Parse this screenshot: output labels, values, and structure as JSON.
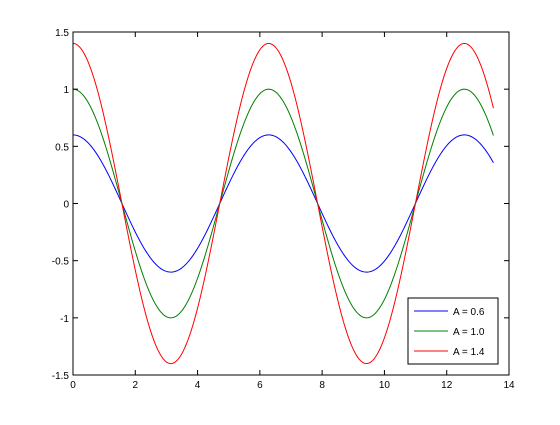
{
  "chart_data": {
    "type": "line",
    "title": "",
    "xlabel": "",
    "ylabel": "",
    "xlim": [
      0,
      14
    ],
    "ylim": [
      -1.5,
      1.5
    ],
    "xticks": [
      0,
      2,
      4,
      6,
      8,
      10,
      12,
      14
    ],
    "yticks": [
      -1.5,
      -1,
      -0.5,
      0,
      0.5,
      1,
      1.5
    ],
    "xtick_labels": [
      "0",
      "2",
      "4",
      "6",
      "8",
      "10",
      "12",
      "14"
    ],
    "ytick_labels": [
      "-1.5",
      "-1",
      "-0.5",
      "0",
      "0.5",
      "1",
      "1.5"
    ],
    "grid": false,
    "legend_position": "bottom-right",
    "x_range": [
      0,
      13.5
    ],
    "function": "A*cos(x)",
    "series": [
      {
        "name": "A = 0.6",
        "amplitude": 0.6,
        "color": "#0000ff"
      },
      {
        "name": "A = 1.0",
        "amplitude": 1.0,
        "color": "#008000"
      },
      {
        "name": "A = 1.4",
        "amplitude": 1.4,
        "color": "#ff0000"
      }
    ]
  }
}
